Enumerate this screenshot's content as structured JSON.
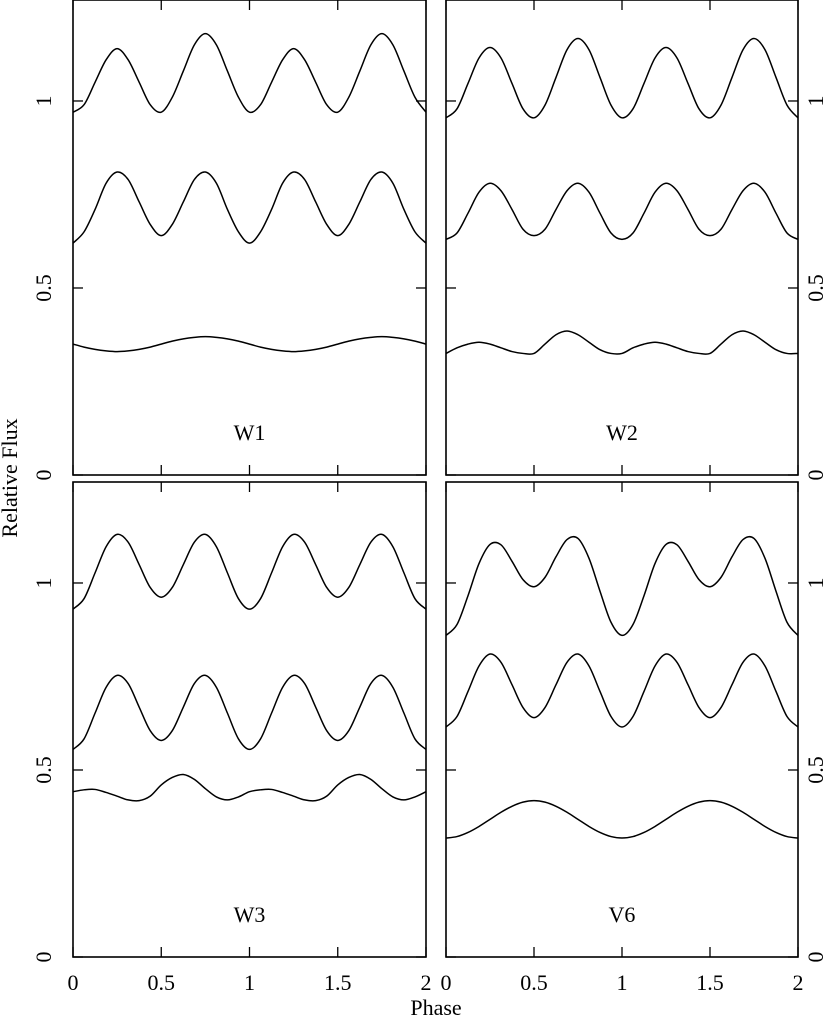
{
  "xlabel": "Phase",
  "ylabel": "Relative Flux",
  "chart_data": [
    {
      "type": "line",
      "label": "W1",
      "x": [
        0,
        0.0625,
        0.125,
        0.1875,
        0.25,
        0.3125,
        0.375,
        0.4375,
        0.5,
        0.5625,
        0.625,
        0.6875,
        0.75,
        0.8125,
        0.875,
        0.9375,
        1,
        1.0625,
        1.125,
        1.1875,
        1.25,
        1.3125,
        1.375,
        1.4375,
        1.5,
        1.5625,
        1.625,
        1.6875,
        1.75,
        1.8125,
        1.875,
        1.9375,
        2
      ],
      "xlim": [
        0,
        2
      ],
      "xticks": [
        0,
        0.5,
        1,
        1.5,
        2
      ],
      "ylim": [
        0,
        1.27
      ],
      "yticks": [
        0,
        0.5,
        1
      ],
      "series": [
        {
          "color": "#000000",
          "values": [
            0.97,
            0.99,
            1.05,
            1.11,
            1.14,
            1.11,
            1.05,
            0.99,
            0.97,
            1.01,
            1.08,
            1.15,
            1.18,
            1.15,
            1.08,
            1.01,
            0.97,
            0.99,
            1.05,
            1.11,
            1.14,
            1.11,
            1.05,
            0.99,
            0.97,
            1.01,
            1.08,
            1.15,
            1.18,
            1.15,
            1.08,
            1.01,
            0.97
          ]
        },
        {
          "color": "#000000",
          "values": [
            0.62,
            0.65,
            0.71,
            0.78,
            0.81,
            0.79,
            0.73,
            0.67,
            0.64,
            0.67,
            0.73,
            0.79,
            0.81,
            0.78,
            0.71,
            0.65,
            0.62,
            0.65,
            0.71,
            0.78,
            0.81,
            0.79,
            0.73,
            0.67,
            0.64,
            0.67,
            0.73,
            0.79,
            0.81,
            0.78,
            0.71,
            0.65,
            0.62
          ]
        },
        {
          "color": "#000000",
          "values": [
            0.35,
            0.342,
            0.336,
            0.332,
            0.33,
            0.332,
            0.336,
            0.342,
            0.35,
            0.358,
            0.364,
            0.368,
            0.37,
            0.368,
            0.364,
            0.358,
            0.35,
            0.342,
            0.336,
            0.332,
            0.33,
            0.332,
            0.336,
            0.342,
            0.35,
            0.358,
            0.364,
            0.368,
            0.37,
            0.368,
            0.364,
            0.358,
            0.35
          ]
        }
      ]
    },
    {
      "type": "line",
      "label": "W2",
      "x": [
        0,
        0.0625,
        0.125,
        0.1875,
        0.25,
        0.3125,
        0.375,
        0.4375,
        0.5,
        0.5625,
        0.625,
        0.6875,
        0.75,
        0.8125,
        0.875,
        0.9375,
        1,
        1.0625,
        1.125,
        1.1875,
        1.25,
        1.3125,
        1.375,
        1.4375,
        1.5,
        1.5625,
        1.625,
        1.6875,
        1.75,
        1.8125,
        1.875,
        1.9375,
        2
      ],
      "xlim": [
        0,
        2
      ],
      "xticks": [
        0,
        0.5,
        1,
        1.5,
        2
      ],
      "ylim": [
        0,
        1.27
      ],
      "yticks": [
        0,
        0.5,
        1
      ],
      "series": [
        {
          "color": "#000000",
          "values": [
            0.955,
            0.979,
            1.047,
            1.115,
            1.143,
            1.115,
            1.047,
            0.979,
            0.955,
            0.989,
            1.063,
            1.137,
            1.167,
            1.137,
            1.063,
            0.989,
            0.955,
            0.979,
            1.047,
            1.115,
            1.143,
            1.115,
            1.047,
            0.979,
            0.955,
            0.989,
            1.063,
            1.137,
            1.167,
            1.137,
            1.063,
            0.989,
            0.955
          ]
        },
        {
          "color": "#000000",
          "values": [
            0.63,
            0.647,
            0.7,
            0.756,
            0.78,
            0.76,
            0.71,
            0.657,
            0.64,
            0.657,
            0.71,
            0.76,
            0.78,
            0.756,
            0.7,
            0.647,
            0.63,
            0.647,
            0.7,
            0.756,
            0.78,
            0.76,
            0.71,
            0.657,
            0.64,
            0.657,
            0.71,
            0.76,
            0.78,
            0.756,
            0.7,
            0.647,
            0.63
          ]
        },
        {
          "color": "#000000",
          "values": [
            0.325,
            0.34,
            0.35,
            0.355,
            0.35,
            0.34,
            0.33,
            0.325,
            0.325,
            0.35,
            0.375,
            0.385,
            0.375,
            0.355,
            0.335,
            0.325,
            0.325,
            0.34,
            0.35,
            0.355,
            0.35,
            0.34,
            0.33,
            0.325,
            0.325,
            0.35,
            0.375,
            0.385,
            0.375,
            0.355,
            0.335,
            0.325,
            0.325
          ]
        }
      ]
    },
    {
      "type": "line",
      "label": "W3",
      "x": [
        0,
        0.0625,
        0.125,
        0.1875,
        0.25,
        0.3125,
        0.375,
        0.4375,
        0.5,
        0.5625,
        0.625,
        0.6875,
        0.75,
        0.8125,
        0.875,
        0.9375,
        1,
        1.0625,
        1.125,
        1.1875,
        1.25,
        1.3125,
        1.375,
        1.4375,
        1.5,
        1.5625,
        1.625,
        1.6875,
        1.75,
        1.8125,
        1.875,
        1.9375,
        2
      ],
      "xlim": [
        0,
        2
      ],
      "xticks": [
        0,
        0.5,
        1,
        1.5,
        2
      ],
      "ylim": [
        0,
        1.27
      ],
      "yticks": [
        0,
        0.5,
        1
      ],
      "series": [
        {
          "color": "#000000",
          "values": [
            0.93,
            0.958,
            1.027,
            1.097,
            1.13,
            1.109,
            1.049,
            0.988,
            0.962,
            0.988,
            1.049,
            1.109,
            1.13,
            1.097,
            1.027,
            0.958,
            0.93,
            0.958,
            1.027,
            1.097,
            1.13,
            1.109,
            1.049,
            0.988,
            0.962,
            0.988,
            1.049,
            1.109,
            1.13,
            1.097,
            1.027,
            0.958,
            0.93
          ]
        },
        {
          "color": "#000000",
          "values": [
            0.555,
            0.583,
            0.652,
            0.721,
            0.753,
            0.731,
            0.668,
            0.605,
            0.579,
            0.605,
            0.668,
            0.731,
            0.753,
            0.721,
            0.652,
            0.583,
            0.555,
            0.583,
            0.652,
            0.721,
            0.753,
            0.731,
            0.668,
            0.605,
            0.579,
            0.605,
            0.668,
            0.731,
            0.753,
            0.721,
            0.652,
            0.583,
            0.555
          ]
        },
        {
          "color": "#000000",
          "values": [
            0.442,
            0.447,
            0.448,
            0.44,
            0.43,
            0.42,
            0.418,
            0.43,
            0.46,
            0.48,
            0.488,
            0.475,
            0.45,
            0.428,
            0.42,
            0.428,
            0.442,
            0.447,
            0.448,
            0.44,
            0.43,
            0.42,
            0.418,
            0.43,
            0.46,
            0.48,
            0.488,
            0.475,
            0.45,
            0.428,
            0.42,
            0.428,
            0.442
          ]
        }
      ]
    },
    {
      "type": "line",
      "label": "V6",
      "x": [
        0,
        0.0625,
        0.125,
        0.1875,
        0.25,
        0.3125,
        0.375,
        0.4375,
        0.5,
        0.5625,
        0.625,
        0.6875,
        0.75,
        0.8125,
        0.875,
        0.9375,
        1,
        1.0625,
        1.125,
        1.1875,
        1.25,
        1.3125,
        1.375,
        1.4375,
        1.5,
        1.5625,
        1.625,
        1.6875,
        1.75,
        1.8125,
        1.875,
        1.9375,
        2
      ],
      "xlim": [
        0,
        2
      ],
      "xticks": [
        0,
        0.5,
        1,
        1.5,
        2
      ],
      "ylim": [
        0,
        1.27
      ],
      "yticks": [
        0,
        0.5,
        1
      ],
      "series": [
        {
          "color": "#000000",
          "values": [
            0.86,
            0.889,
            0.966,
            1.052,
            1.103,
            1.102,
            1.058,
            1.009,
            0.99,
            1.015,
            1.07,
            1.116,
            1.119,
            1.066,
            0.978,
            0.895,
            0.86,
            0.889,
            0.966,
            1.052,
            1.103,
            1.102,
            1.058,
            1.009,
            0.99,
            1.015,
            1.07,
            1.116,
            1.119,
            1.066,
            0.978,
            0.895,
            0.86
          ]
        },
        {
          "color": "#000000",
          "values": [
            0.615,
            0.643,
            0.71,
            0.778,
            0.81,
            0.788,
            0.728,
            0.667,
            0.64,
            0.667,
            0.728,
            0.788,
            0.81,
            0.778,
            0.71,
            0.643,
            0.615,
            0.643,
            0.71,
            0.778,
            0.81,
            0.788,
            0.728,
            0.667,
            0.64,
            0.667,
            0.728,
            0.788,
            0.81,
            0.778,
            0.71,
            0.643,
            0.615
          ]
        },
        {
          "color": "#000000",
          "values": [
            0.318,
            0.322,
            0.333,
            0.349,
            0.368,
            0.387,
            0.403,
            0.414,
            0.418,
            0.414,
            0.403,
            0.387,
            0.368,
            0.349,
            0.333,
            0.322,
            0.318,
            0.322,
            0.333,
            0.349,
            0.368,
            0.387,
            0.403,
            0.414,
            0.418,
            0.414,
            0.403,
            0.387,
            0.368,
            0.349,
            0.333,
            0.322,
            0.318
          ]
        }
      ]
    }
  ]
}
